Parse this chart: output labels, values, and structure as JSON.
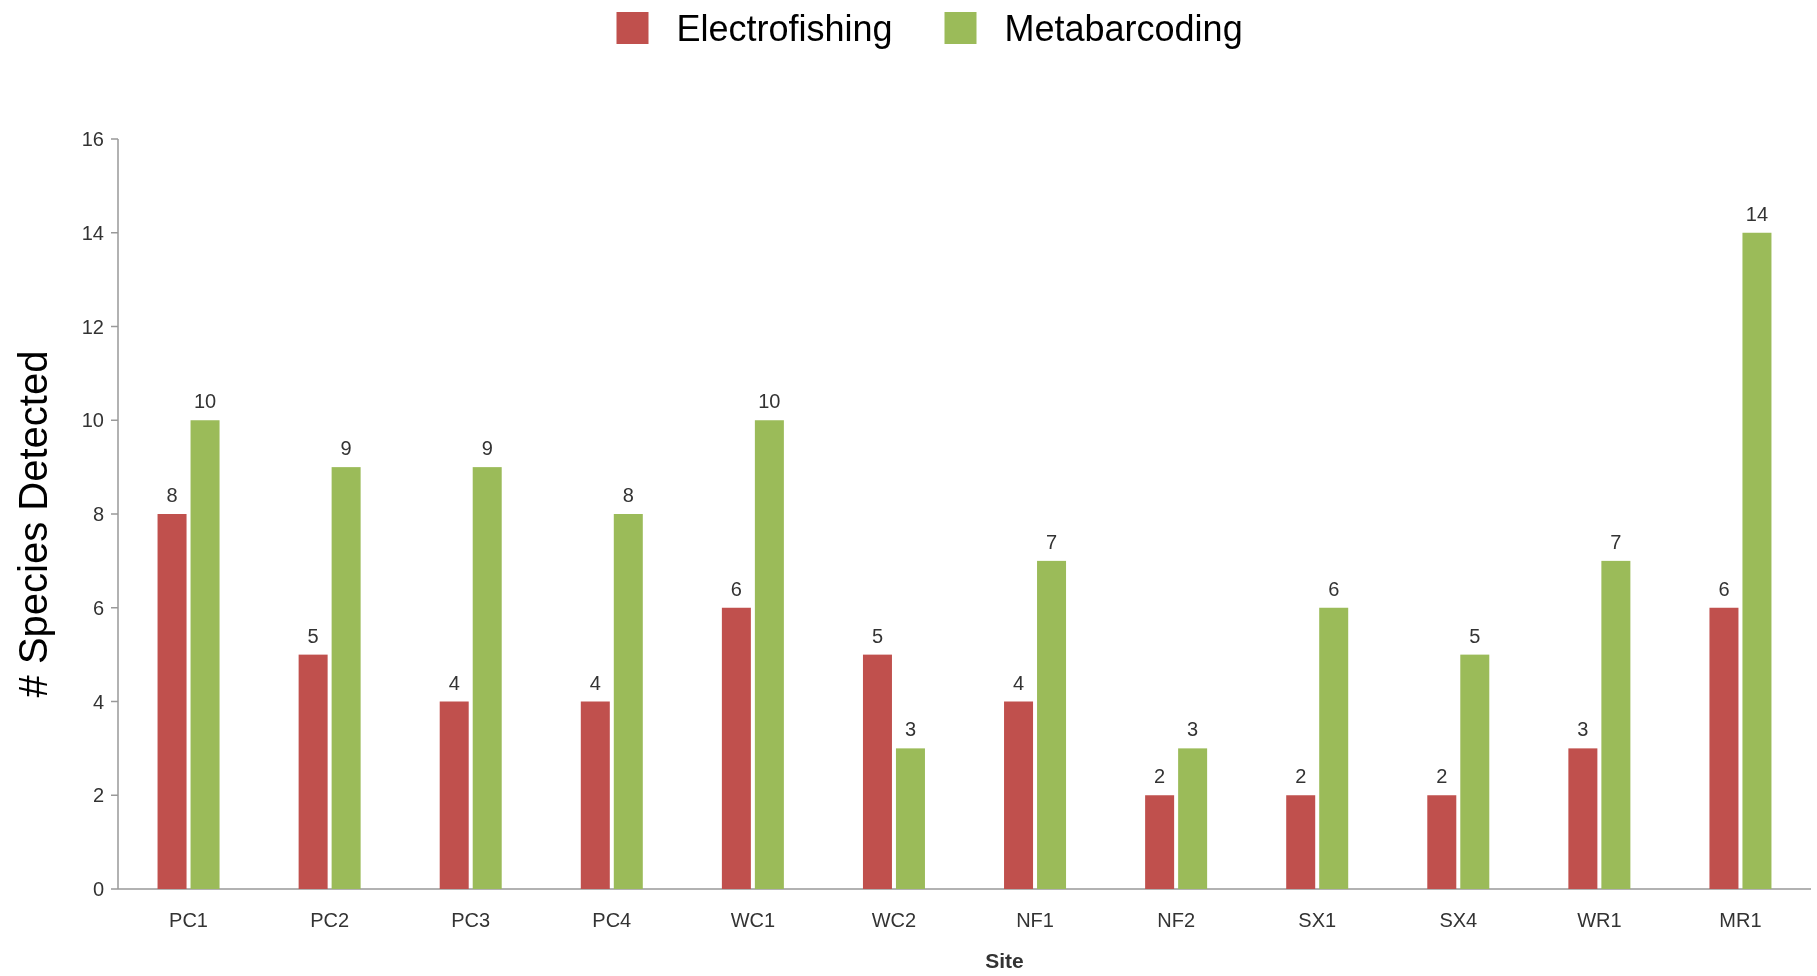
{
  "chart_data": {
    "type": "bar",
    "xlabel": "Site",
    "ylabel": "# Species Detected",
    "categories": [
      "PC1",
      "PC2",
      "PC3",
      "PC4",
      "WC1",
      "WC2",
      "NF1",
      "NF2",
      "SX1",
      "SX4",
      "WR1",
      "MR1"
    ],
    "series": [
      {
        "name": "Electrofishing",
        "color": "#c0504d",
        "values": [
          8,
          5,
          4,
          4,
          6,
          5,
          4,
          2,
          2,
          2,
          3,
          6
        ]
      },
      {
        "name": "Metabarcoding",
        "color": "#9bbb59",
        "values": [
          10,
          9,
          9,
          8,
          10,
          3,
          7,
          3,
          6,
          5,
          7,
          14
        ]
      }
    ],
    "ylim": [
      0,
      16
    ],
    "yticks": [
      0,
      2,
      4,
      6,
      8,
      10,
      12,
      14,
      16
    ],
    "data_labels": true,
    "legend": "top",
    "grid": false
  }
}
